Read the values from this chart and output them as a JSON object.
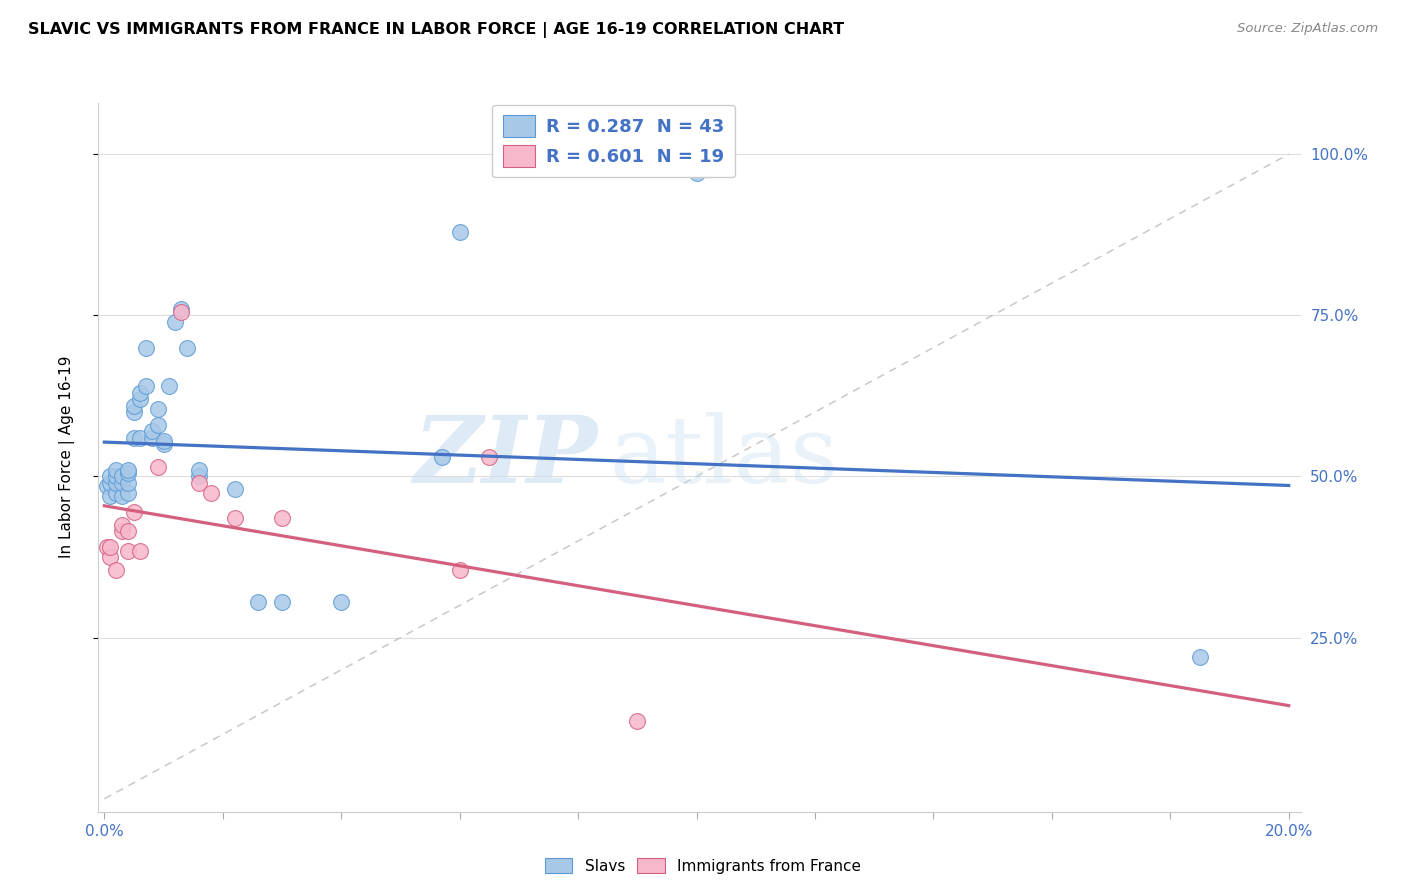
{
  "title": "SLAVIC VS IMMIGRANTS FROM FRANCE IN LABOR FORCE | AGE 16-19 CORRELATION CHART",
  "source": "Source: ZipAtlas.com",
  "ylabel": "In Labor Force | Age 16-19",
  "xlim": [
    0.0,
    0.2
  ],
  "ylim": [
    0.0,
    1.08
  ],
  "ytick_values": [
    0.25,
    0.5,
    0.75,
    1.0
  ],
  "ytick_labels": [
    "25.0%",
    "50.0%",
    "75.0%",
    "100.0%"
  ],
  "blue_scatter_color": "#a8c8e8",
  "blue_edge_color": "#5b9bd5",
  "pink_scatter_color": "#f8b8cc",
  "pink_edge_color": "#d46080",
  "trendline_blue": "#4472c4",
  "trendline_pink": "#d46080",
  "watermark_zip": "ZIP",
  "watermark_atlas": "atlas",
  "slavs_x": [
    0.0005,
    0.001,
    0.001,
    0.001,
    0.002,
    0.002,
    0.002,
    0.002,
    0.003,
    0.003,
    0.003,
    0.004,
    0.004,
    0.004,
    0.004,
    0.005,
    0.005,
    0.005,
    0.006,
    0.006,
    0.006,
    0.007,
    0.007,
    0.008,
    0.008,
    0.009,
    0.009,
    0.01,
    0.01,
    0.011,
    0.012,
    0.013,
    0.014,
    0.016,
    0.016,
    0.022,
    0.026,
    0.03,
    0.04,
    0.057,
    0.06,
    0.1,
    0.185
  ],
  "slavs_y": [
    0.485,
    0.47,
    0.49,
    0.5,
    0.475,
    0.49,
    0.5,
    0.51,
    0.47,
    0.49,
    0.5,
    0.475,
    0.49,
    0.505,
    0.51,
    0.56,
    0.6,
    0.61,
    0.56,
    0.62,
    0.63,
    0.64,
    0.7,
    0.56,
    0.57,
    0.58,
    0.605,
    0.55,
    0.555,
    0.64,
    0.74,
    0.76,
    0.7,
    0.5,
    0.51,
    0.48,
    0.305,
    0.305,
    0.305,
    0.53,
    0.88,
    0.97,
    0.22
  ],
  "france_x": [
    0.0005,
    0.001,
    0.001,
    0.002,
    0.003,
    0.003,
    0.004,
    0.004,
    0.005,
    0.006,
    0.009,
    0.013,
    0.016,
    0.018,
    0.022,
    0.03,
    0.06,
    0.065,
    0.09
  ],
  "france_y": [
    0.39,
    0.375,
    0.39,
    0.355,
    0.415,
    0.425,
    0.385,
    0.415,
    0.445,
    0.385,
    0.515,
    0.755,
    0.49,
    0.475,
    0.435,
    0.435,
    0.355,
    0.53,
    0.12
  ]
}
